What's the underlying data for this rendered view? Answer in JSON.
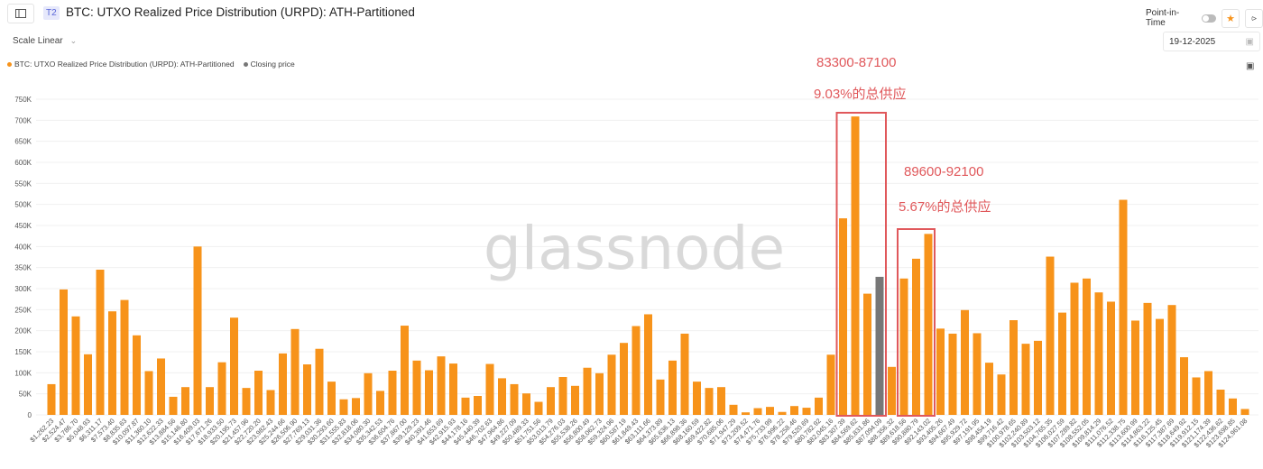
{
  "header": {
    "tier_badge": "T2",
    "title": "BTC: UTXO Realized Price Distribution (URPD): ATH-Partitioned",
    "point_in_time_label": "Point-in-Time",
    "point_in_time_enabled": false,
    "favorite_icon": "star-icon",
    "share_icon": "share-icon",
    "sidebar_icon": "sidebar-toggle-icon"
  },
  "controls": {
    "scale_label": "Scale Linear",
    "date_value": "19-12-2025",
    "calendar_icon": "calendar-icon",
    "screenshot_icon": "camera-icon"
  },
  "legend": [
    {
      "label": "BTC: UTXO Realized Price Distribution (URPD): ATH-Partitioned",
      "color": "#f7931a"
    },
    {
      "label": "Closing price",
      "color": "#777777"
    }
  ],
  "watermark": "glassnode",
  "annotations": [
    {
      "range": "83300-87100",
      "share": "9.03%的总供应"
    },
    {
      "range": "89600-92100",
      "share": "5.67%的总供应"
    }
  ],
  "annotation_color": "#e0585b",
  "chart_data": {
    "type": "bar",
    "title": "BTC: UTXO Realized Price Distribution (URPD): ATH-Partitioned",
    "xlabel": "",
    "ylabel": "",
    "ylim": [
      0,
      750000
    ],
    "yticks": [
      "0",
      "50K",
      "100K",
      "150K",
      "200K",
      "250K",
      "300K",
      "350K",
      "400K",
      "450K",
      "500K",
      "550K",
      "600K",
      "650K",
      "700K",
      "750K"
    ],
    "grid": true,
    "legend_position": "top-left",
    "bar_color": "#f7931a",
    "closing_price_color": "#777777",
    "closing_price_category": "$87,094.09",
    "categories": [
      "$1,262.23",
      "$2,524.47",
      "$3,786.70",
      "$5,048.93",
      "$6,311.17",
      "$7,573.40",
      "$8,835.63",
      "$10,097.87",
      "$11,360.10",
      "$12,622.33",
      "$13,884.56",
      "$15,146.80",
      "$16,409.03",
      "$17,671.26",
      "$18,933.50",
      "$20,195.73",
      "$21,457.96",
      "$22,720.20",
      "$23,982.43",
      "$25,244.66",
      "$26,506.90",
      "$27,769.13",
      "$29,031.36",
      "$30,293.60",
      "$31,555.83",
      "$32,818.06",
      "$34,080.30",
      "$35,342.53",
      "$36,604.76",
      "$37,867.00",
      "$39,129.23",
      "$40,391.46",
      "$41,653.69",
      "$42,915.93",
      "$44,178.16",
      "$45,440.39",
      "$46,702.63",
      "$47,964.86",
      "$49,227.09",
      "$50,489.33",
      "$51,751.56",
      "$53,013.79",
      "$54,276.03",
      "$55,538.26",
      "$56,800.49",
      "$58,062.73",
      "$59,324.96",
      "$60,587.19",
      "$61,849.43",
      "$63,111.66",
      "$64,373.89",
      "$65,636.13",
      "$66,898.36",
      "$68,160.59",
      "$69,422.82",
      "$70,685.06",
      "$71,947.29",
      "$73,209.52",
      "$74,471.76",
      "$75,733.99",
      "$76,996.22",
      "$78,258.46",
      "$79,520.69",
      "$80,782.92",
      "$82,045.16",
      "$83,307.39",
      "$84,569.62",
      "$85,831.86",
      "$87,094.09",
      "$88,356.32",
      "$89,618.56",
      "$90,880.79",
      "$92,143.02",
      "$93,405.26",
      "$94,667.49",
      "$95,929.72",
      "$97,191.95",
      "$98,454.19",
      "$99,716.42",
      "$100,978.65",
      "$102,240.89",
      "$103,503.12",
      "$104,765.35",
      "$106,027.59",
      "$107,289.82",
      "$108,552.05",
      "$109,814.29",
      "$111,076.52",
      "$112,338.75",
      "$113,600.99",
      "$114,863.22",
      "$116,125.45",
      "$117,387.69",
      "$118,649.92",
      "$119,912.15",
      "$121,174.39",
      "$122,436.62",
      "$123,698.85",
      "$124,961.08"
    ],
    "values": [
      73000,
      298000,
      234000,
      144000,
      345000,
      246000,
      273000,
      189000,
      104000,
      134000,
      43000,
      66000,
      400000,
      66000,
      125000,
      231000,
      64000,
      105000,
      59000,
      146000,
      204000,
      120000,
      157000,
      79000,
      37000,
      40000,
      99000,
      57000,
      105000,
      212000,
      129000,
      106000,
      139000,
      122000,
      41000,
      45000,
      121000,
      87000,
      73000,
      51000,
      31000,
      66000,
      90000,
      69000,
      112000,
      99000,
      143000,
      171000,
      211000,
      239000,
      84000,
      129000,
      193000,
      79000,
      64000,
      66000,
      24000,
      6000,
      16000,
      19000,
      7000,
      21000,
      17000,
      41000,
      143000,
      467000,
      709000,
      288000,
      328000,
      114000,
      324000,
      371000,
      430000,
      205000,
      193000,
      249000,
      194000,
      124000,
      96000,
      225000,
      169000,
      176000,
      376000,
      243000,
      314000,
      324000,
      291000,
      269000,
      511000,
      224000,
      266000,
      228000,
      261000,
      137000,
      89000,
      104000,
      60000,
      39000,
      14000
    ]
  }
}
